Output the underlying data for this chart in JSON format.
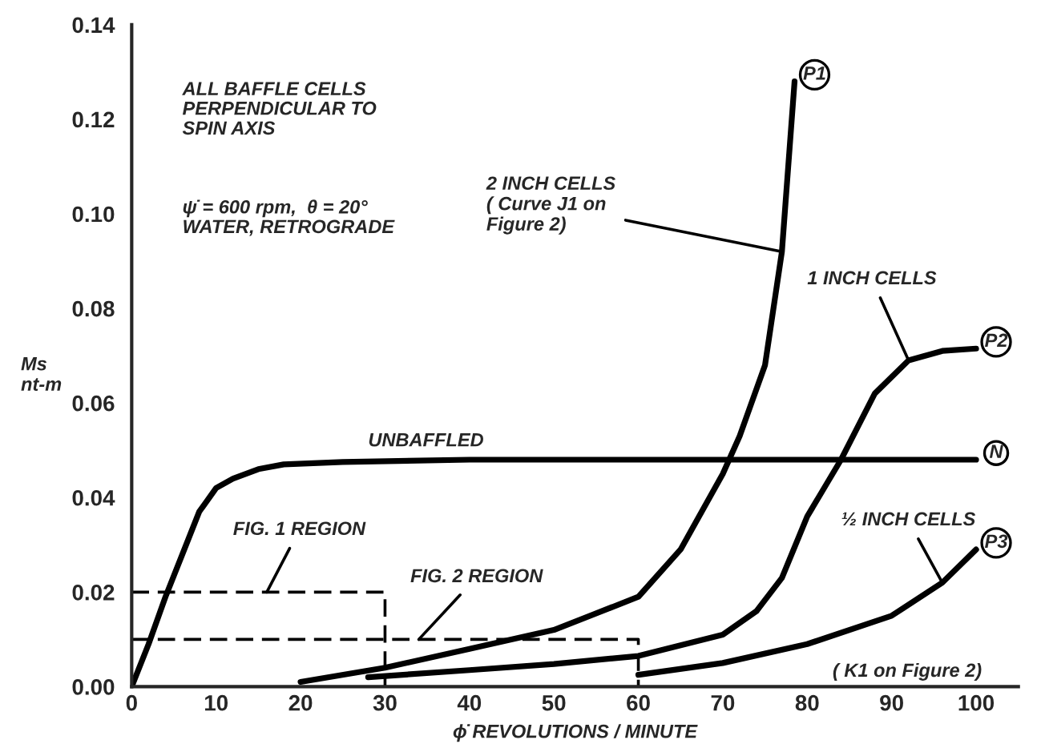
{
  "chart_data": {
    "type": "line",
    "xlabel": "ϕ̇ REVOLUTIONS / MINUTE",
    "ylabel": "Ms\nnt-m",
    "xlim": [
      0,
      105
    ],
    "xticks": [
      0,
      10,
      20,
      30,
      40,
      50,
      60,
      70,
      80,
      90,
      100
    ],
    "ylim": [
      0,
      0.14
    ],
    "yticks": [
      {
        "value": 0,
        "label": "0.00"
      },
      {
        "value": 0.02,
        "label": "0.02"
      },
      {
        "value": 0.04,
        "label": "0.04"
      },
      {
        "value": 0.06,
        "label": "0.06"
      },
      {
        "value": 0.08,
        "label": "0.08"
      },
      {
        "value": 0.1,
        "label": "0.10"
      },
      {
        "value": 0.12,
        "label": "0.12"
      },
      {
        "value": 0.14,
        "label": "0.14"
      }
    ],
    "grid": false,
    "legend": false,
    "marker": "none",
    "series": [
      {
        "name": "N",
        "color": "#000000",
        "line_style": "solid",
        "x": [
          0,
          2,
          4,
          6,
          8,
          10,
          12,
          15,
          18,
          25,
          40,
          60,
          80,
          100
        ],
        "values": [
          0,
          0.009,
          0.019,
          0.028,
          0.037,
          0.042,
          0.044,
          0.046,
          0.047,
          0.0475,
          0.048,
          0.048,
          0.048,
          0.048
        ]
      },
      {
        "name": "P1",
        "color": "#000000",
        "line_style": "solid",
        "x": [
          20,
          30,
          40,
          50,
          60,
          65,
          70,
          72,
          75,
          77,
          78.5
        ],
        "values": [
          0.001,
          0.004,
          0.008,
          0.012,
          0.019,
          0.029,
          0.045,
          0.053,
          0.068,
          0.092,
          0.128
        ]
      },
      {
        "name": "P2",
        "color": "#000000",
        "line_style": "solid",
        "x": [
          28,
          40,
          50,
          60,
          70,
          74,
          77,
          80,
          84,
          88,
          92,
          96,
          100
        ],
        "values": [
          0.002,
          0.0035,
          0.0048,
          0.0065,
          0.011,
          0.016,
          0.023,
          0.036,
          0.048,
          0.062,
          0.069,
          0.071,
          0.0715
        ]
      },
      {
        "name": "P3",
        "color": "#000000",
        "line_style": "solid",
        "x": [
          60,
          70,
          80,
          90,
          96,
          100
        ],
        "values": [
          0.0025,
          0.005,
          0.009,
          0.015,
          0.022,
          0.029
        ]
      },
      {
        "color": "#000000",
        "line_style": "dashed",
        "x": [
          0,
          30,
          30
        ],
        "values": [
          0.02,
          0.02,
          0
        ]
      },
      {
        "color": "#000000",
        "line_style": "dashed",
        "x": [
          0,
          60,
          60
        ],
        "values": [
          0.01,
          0.01,
          0
        ]
      }
    ],
    "annotations": [
      "ALL BAFFLE CELLS\nPERPENDICULAR TO\nSPIN AXIS",
      "ψ̇ = 600 rpm,  θ = 20°\nWATER, RETROGRADE",
      {
        "text": "2 INCH CELLS\n( Curve J1 on\nFigure 2)",
        "x": 77,
        "y": 0.092
      },
      {
        "text": "1 INCH CELLS",
        "x": 92,
        "y": 0.069
      },
      {
        "text": "UNBAFFLED",
        "x": 40,
        "y": 0.048
      },
      {
        "text": "½ INCH CELLS",
        "x": 96,
        "y": 0.022
      },
      "( K1 on Figure 2)",
      {
        "text": "FIG. 1 REGION",
        "x": 16,
        "y": 0.02
      },
      {
        "text": "FIG. 2 REGION",
        "x": 34,
        "y": 0.01
      }
    ]
  }
}
